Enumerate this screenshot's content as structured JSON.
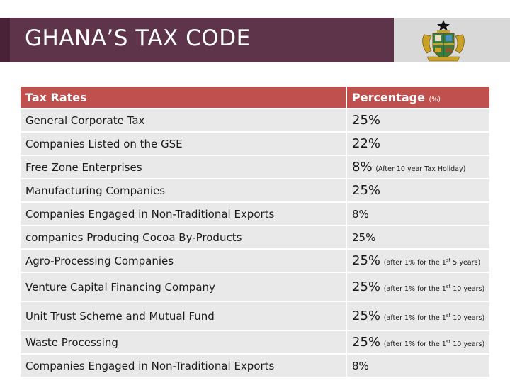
{
  "header": {
    "title": "GHANA’S TAX CODE"
  },
  "table": {
    "col_name": "Tax Rates",
    "col_pct": "Percentage",
    "col_pct_unit": "(%)",
    "rows": [
      {
        "name": "General Corporate Tax",
        "rate": "25%"
      },
      {
        "name": "Companies Listed on the GSE",
        "rate": "22%"
      },
      {
        "name": "Free Zone Enterprises",
        "rate": "8%",
        "note": "(After 10 year Tax Holiday)"
      },
      {
        "name": "Manufacturing Companies",
        "rate": "25%"
      },
      {
        "name": "Companies Engaged in Non-Traditional Exports",
        "rate": "8%"
      },
      {
        "name": "companies Producing Cocoa By-Products",
        "rate": "25%"
      },
      {
        "name": "Agro-Processing Companies",
        "rate": "25%",
        "note_a": "(after 1% for the 1",
        "note_sup": "st",
        "note_b": " 5 years)"
      },
      {
        "name": "Venture Capital Financing Company",
        "rate": "25%",
        "note_a": "(after 1% for the 1",
        "note_sup": "st",
        "note_b": " 10 years)"
      },
      {
        "name": "Unit Trust Scheme and Mutual Fund",
        "rate": "25%",
        "note_a": "(after 1% for the 1",
        "note_sup": "st",
        "note_b": " 10 years)"
      },
      {
        "name": "Waste Processing",
        "rate": "25%",
        "note_a": "(after 1% for the 1",
        "note_sup": "st",
        "note_b": " 10 years)"
      },
      {
        "name": "Companies Engaged in Non-Traditional Exports",
        "rate": "8%"
      }
    ]
  },
  "colors": {
    "title_bg": "#5e344b",
    "header_bg": "#c0504d",
    "row_bg": "#e9e9e9",
    "crest_bg": "#d9d9d9"
  },
  "icons": {
    "crest": "ghana-coat-of-arms-icon"
  }
}
